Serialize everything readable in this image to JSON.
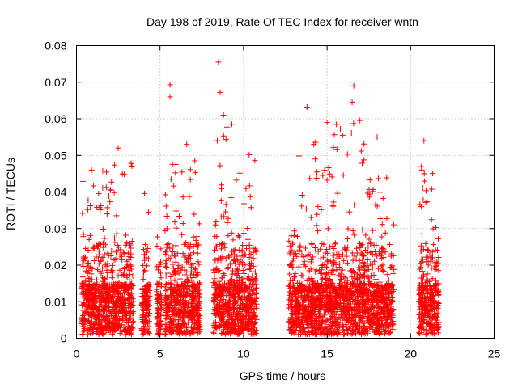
{
  "chart_data": {
    "type": "scatter",
    "title": "Day 198 of 2019, Rate Of TEC Index for receiver wntn",
    "xlabel": "GPS time / hours",
    "ylabel": "ROTI / TECUs",
    "xlim": [
      0,
      25
    ],
    "ylim": [
      0,
      0.08
    ],
    "xticks": [
      "0",
      "5",
      "10",
      "15",
      "20",
      "25"
    ],
    "yticks": [
      "0",
      "0.01",
      "0.02",
      "0.03",
      "0.04",
      "0.05",
      "0.06",
      "0.07",
      "0.08"
    ],
    "grid": true,
    "marker": "+",
    "color": "#ff0000",
    "notable_points": [
      {
        "x": 8.5,
        "y": 0.0755
      },
      {
        "x": 5.6,
        "y": 0.0693
      },
      {
        "x": 5.6,
        "y": 0.066
      },
      {
        "x": 16.6,
        "y": 0.069
      },
      {
        "x": 8.6,
        "y": 0.0672
      },
      {
        "x": 16.5,
        "y": 0.0645
      },
      {
        "x": 13.8,
        "y": 0.0632
      },
      {
        "x": 8.8,
        "y": 0.061
      },
      {
        "x": 15.0,
        "y": 0.059
      },
      {
        "x": 9.3,
        "y": 0.0585
      },
      {
        "x": 20.8,
        "y": 0.054
      },
      {
        "x": 6.6,
        "y": 0.053
      },
      {
        "x": 2.5,
        "y": 0.052
      },
      {
        "x": 18.0,
        "y": 0.055
      },
      {
        "x": 0.9,
        "y": 0.046
      }
    ],
    "clusters": [
      {
        "x_start": 0.3,
        "x_end": 3.4,
        "y_max": 0.048
      },
      {
        "x_start": 3.9,
        "x_end": 4.4,
        "y_max": 0.04
      },
      {
        "x_start": 4.8,
        "x_end": 5.1,
        "y_max": 0.03
      },
      {
        "x_start": 5.3,
        "x_end": 7.4,
        "y_max": 0.049
      },
      {
        "x_start": 8.2,
        "x_end": 10.8,
        "y_max": 0.058
      },
      {
        "x_start": 12.7,
        "x_end": 13.3,
        "y_max": 0.03
      },
      {
        "x_start": 13.3,
        "x_end": 15.3,
        "y_max": 0.057
      },
      {
        "x_start": 15.3,
        "x_end": 17.4,
        "y_max": 0.06
      },
      {
        "x_start": 17.4,
        "x_end": 19.0,
        "y_max": 0.046
      },
      {
        "x_start": 20.5,
        "x_end": 21.7,
        "y_max": 0.048
      }
    ]
  }
}
